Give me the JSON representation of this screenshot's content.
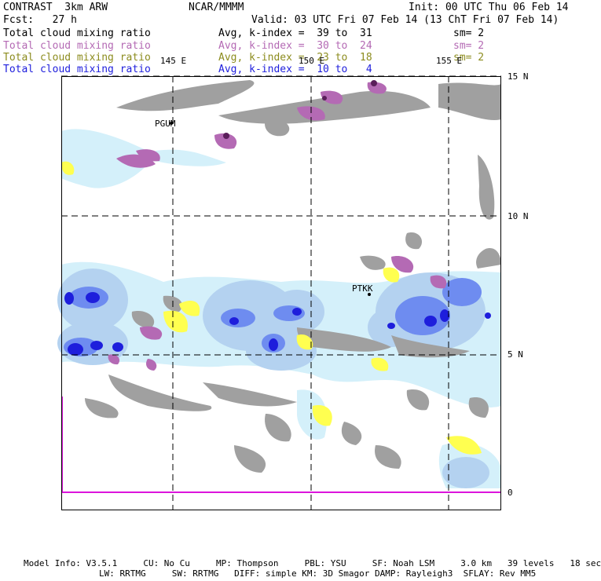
{
  "header": {
    "model_name": "CONTRAST  3km ARW",
    "institution": "NCAR/MMMM",
    "init_time": "Init: 00 UTC Thu 06 Feb 14",
    "forecast_hour": "Fcst:   27 h",
    "valid_time": "Valid: 03 UTC Fri 07 Feb 14 (13 ChT Fri 07 Feb 14)"
  },
  "legend": [
    {
      "field": "Total cloud mixing ratio",
      "avg": "Avg, k-index =  39 to  31",
      "sm": "sm= 2",
      "color": "#000000"
    },
    {
      "field": "Total cloud mixing ratio",
      "avg": "Avg, k-index =  30 to  24",
      "sm": "sm= 2",
      "color": "#b46ab4"
    },
    {
      "field": "Total cloud mixing ratio",
      "avg": "Avg, k-index =  23 to  18",
      "sm": "sm= 2",
      "color": "#8c8c1e"
    },
    {
      "field": "Total cloud mixing ratio",
      "avg": "Avg, k-index =  10 to   4",
      "sm": "",
      "color": "#1e1edc"
    }
  ],
  "map": {
    "lon_labels": [
      "145 E",
      "150 E",
      "155 E"
    ],
    "lat_labels": [
      "15 N",
      "10 N",
      "5 N",
      "0"
    ],
    "stations": [
      "PGUM",
      "PTKK"
    ],
    "fill_colors": {
      "gray": "#a0a0a0",
      "pink": "#b46ab4",
      "yellow": "#ffff50",
      "light_cyan": "#d4f0fa",
      "light_blue": "#b4d2f0",
      "mid_blue": "#6e8cf0",
      "dark_blue": "#1e1edc"
    }
  },
  "footer": {
    "line1": "Model Info: V3.5.1     CU: No Cu     MP: Thompson     PBL: YSU     SF: Noah LSM     3.0 km   39 levels   18 sec",
    "line2": "LW: RRTMG     SW: RRTMG   DIFF: simple KM: 3D Smagor DAMP: Rayleigh3  SFLAY: Rev MM5"
  }
}
